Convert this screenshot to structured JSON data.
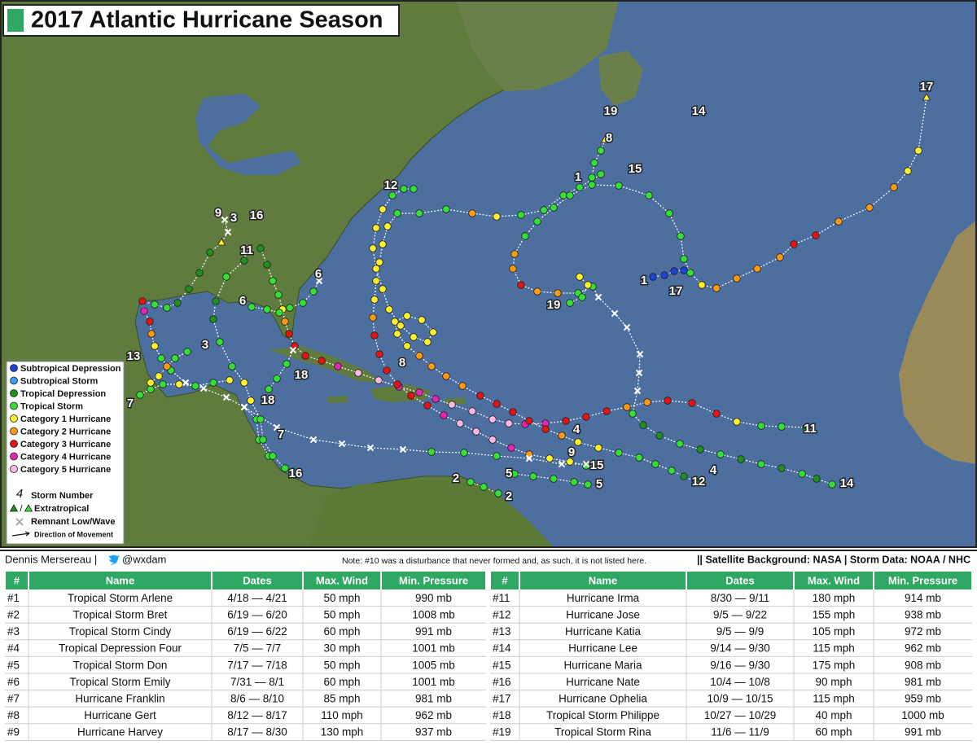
{
  "header": {
    "title": "2017 Atlantic Hurricane Season"
  },
  "legend": {
    "categories": [
      {
        "label": "Subtropical Depression",
        "color": "#1b44d8"
      },
      {
        "label": "Subtropical Storm",
        "color": "#3b9cf0"
      },
      {
        "label": "Tropical Depression",
        "color": "#1f8f1f"
      },
      {
        "label": "Tropical Storm",
        "color": "#33e033"
      },
      {
        "label": "Category 1 Hurricane",
        "color": "#fff22a"
      },
      {
        "label": "Category 2 Hurricane",
        "color": "#ff9a10"
      },
      {
        "label": "Category 3 Hurricane",
        "color": "#e41414"
      },
      {
        "label": "Category 4 Hurricane",
        "color": "#e624b6"
      },
      {
        "label": "Category 5 Hurricane",
        "color": "#ffb8e6"
      }
    ],
    "symbols": [
      {
        "icon": "4",
        "label": "Storm Number"
      },
      {
        "icon": "/",
        "label": "Extratropical"
      },
      {
        "label": "Remnant Low/Wave"
      },
      {
        "label": "Direction of Movement"
      }
    ]
  },
  "map_labels": [
    "19",
    "14",
    "17",
    "8",
    "15",
    "1",
    "12",
    "3",
    "16",
    "9",
    "11",
    "6",
    "6",
    "1",
    "17",
    "19",
    "3",
    "8",
    "18",
    "13",
    "7",
    "18",
    "7",
    "4",
    "11",
    "9",
    "15",
    "4",
    "5",
    "5",
    "12",
    "14",
    "2",
    "2",
    "16"
  ],
  "footer": {
    "credit": "Dennis Mersereau |",
    "handle": "@wxdam",
    "note": "Note: #10 was a disturbance that never formed and, as such, it is not listed here.",
    "sources": "|| Satellite Background: NASA | Storm Data: NOAA / NHC"
  },
  "tables": [
    {
      "columns": [
        "#",
        "Name",
        "Dates",
        "Max. Wind",
        "Min. Pressure"
      ],
      "rows": [
        [
          "#1",
          "Tropical Storm Arlene",
          "4/18 — 4/21",
          "50 mph",
          "990 mb"
        ],
        [
          "#2",
          "Tropical Storm Bret",
          "6/19 — 6/20",
          "50 mph",
          "1008 mb"
        ],
        [
          "#3",
          "Tropical Storm Cindy",
          "6/19 — 6/22",
          "60 mph",
          "991 mb"
        ],
        [
          "#4",
          "Tropical Depression Four",
          "7/5 — 7/7",
          "30 mph",
          "1001 mb"
        ],
        [
          "#5",
          "Tropical Storm Don",
          "7/17 — 7/18",
          "50 mph",
          "1005 mb"
        ],
        [
          "#6",
          "Tropical Storm Emily",
          "7/31 — 8/1",
          "60 mph",
          "1001 mb"
        ],
        [
          "#7",
          "Hurricane Franklin",
          "8/6 — 8/10",
          "85 mph",
          "981 mb"
        ],
        [
          "#8",
          "Hurricane Gert",
          "8/12 — 8/17",
          "110 mph",
          "962 mb"
        ],
        [
          "#9",
          "Hurricane Harvey",
          "8/17 — 8/30",
          "130 mph",
          "937 mb"
        ]
      ]
    },
    {
      "columns": [
        "#",
        "Name",
        "Dates",
        "Max. Wind",
        "Min. Pressure"
      ],
      "rows": [
        [
          "#11",
          "Hurricane Irma",
          "8/30 — 9/11",
          "180 mph",
          "914 mb"
        ],
        [
          "#12",
          "Hurricane Jose",
          "9/5 — 9/22",
          "155 mph",
          "938 mb"
        ],
        [
          "#13",
          "Hurricane Katia",
          "9/5 — 9/9",
          "105 mph",
          "972 mb"
        ],
        [
          "#14",
          "Hurricane Lee",
          "9/14 — 9/30",
          "115 mph",
          "962 mb"
        ],
        [
          "#15",
          "Hurricane Maria",
          "9/16 — 9/30",
          "175 mph",
          "908 mb"
        ],
        [
          "#16",
          "Hurricane Nate",
          "10/4 — 10/8",
          "90 mph",
          "981 mb"
        ],
        [
          "#17",
          "Hurricane Ophelia",
          "10/9 — 10/15",
          "115 mph",
          "959 mb"
        ],
        [
          "#18",
          "Tropical Storm Philippe",
          "10/27 — 10/29",
          "40 mph",
          "1000 mb"
        ],
        [
          "#19",
          "Tropical Storm Rina",
          "11/6 — 11/9",
          "60 mph",
          "991 mb"
        ]
      ]
    }
  ]
}
